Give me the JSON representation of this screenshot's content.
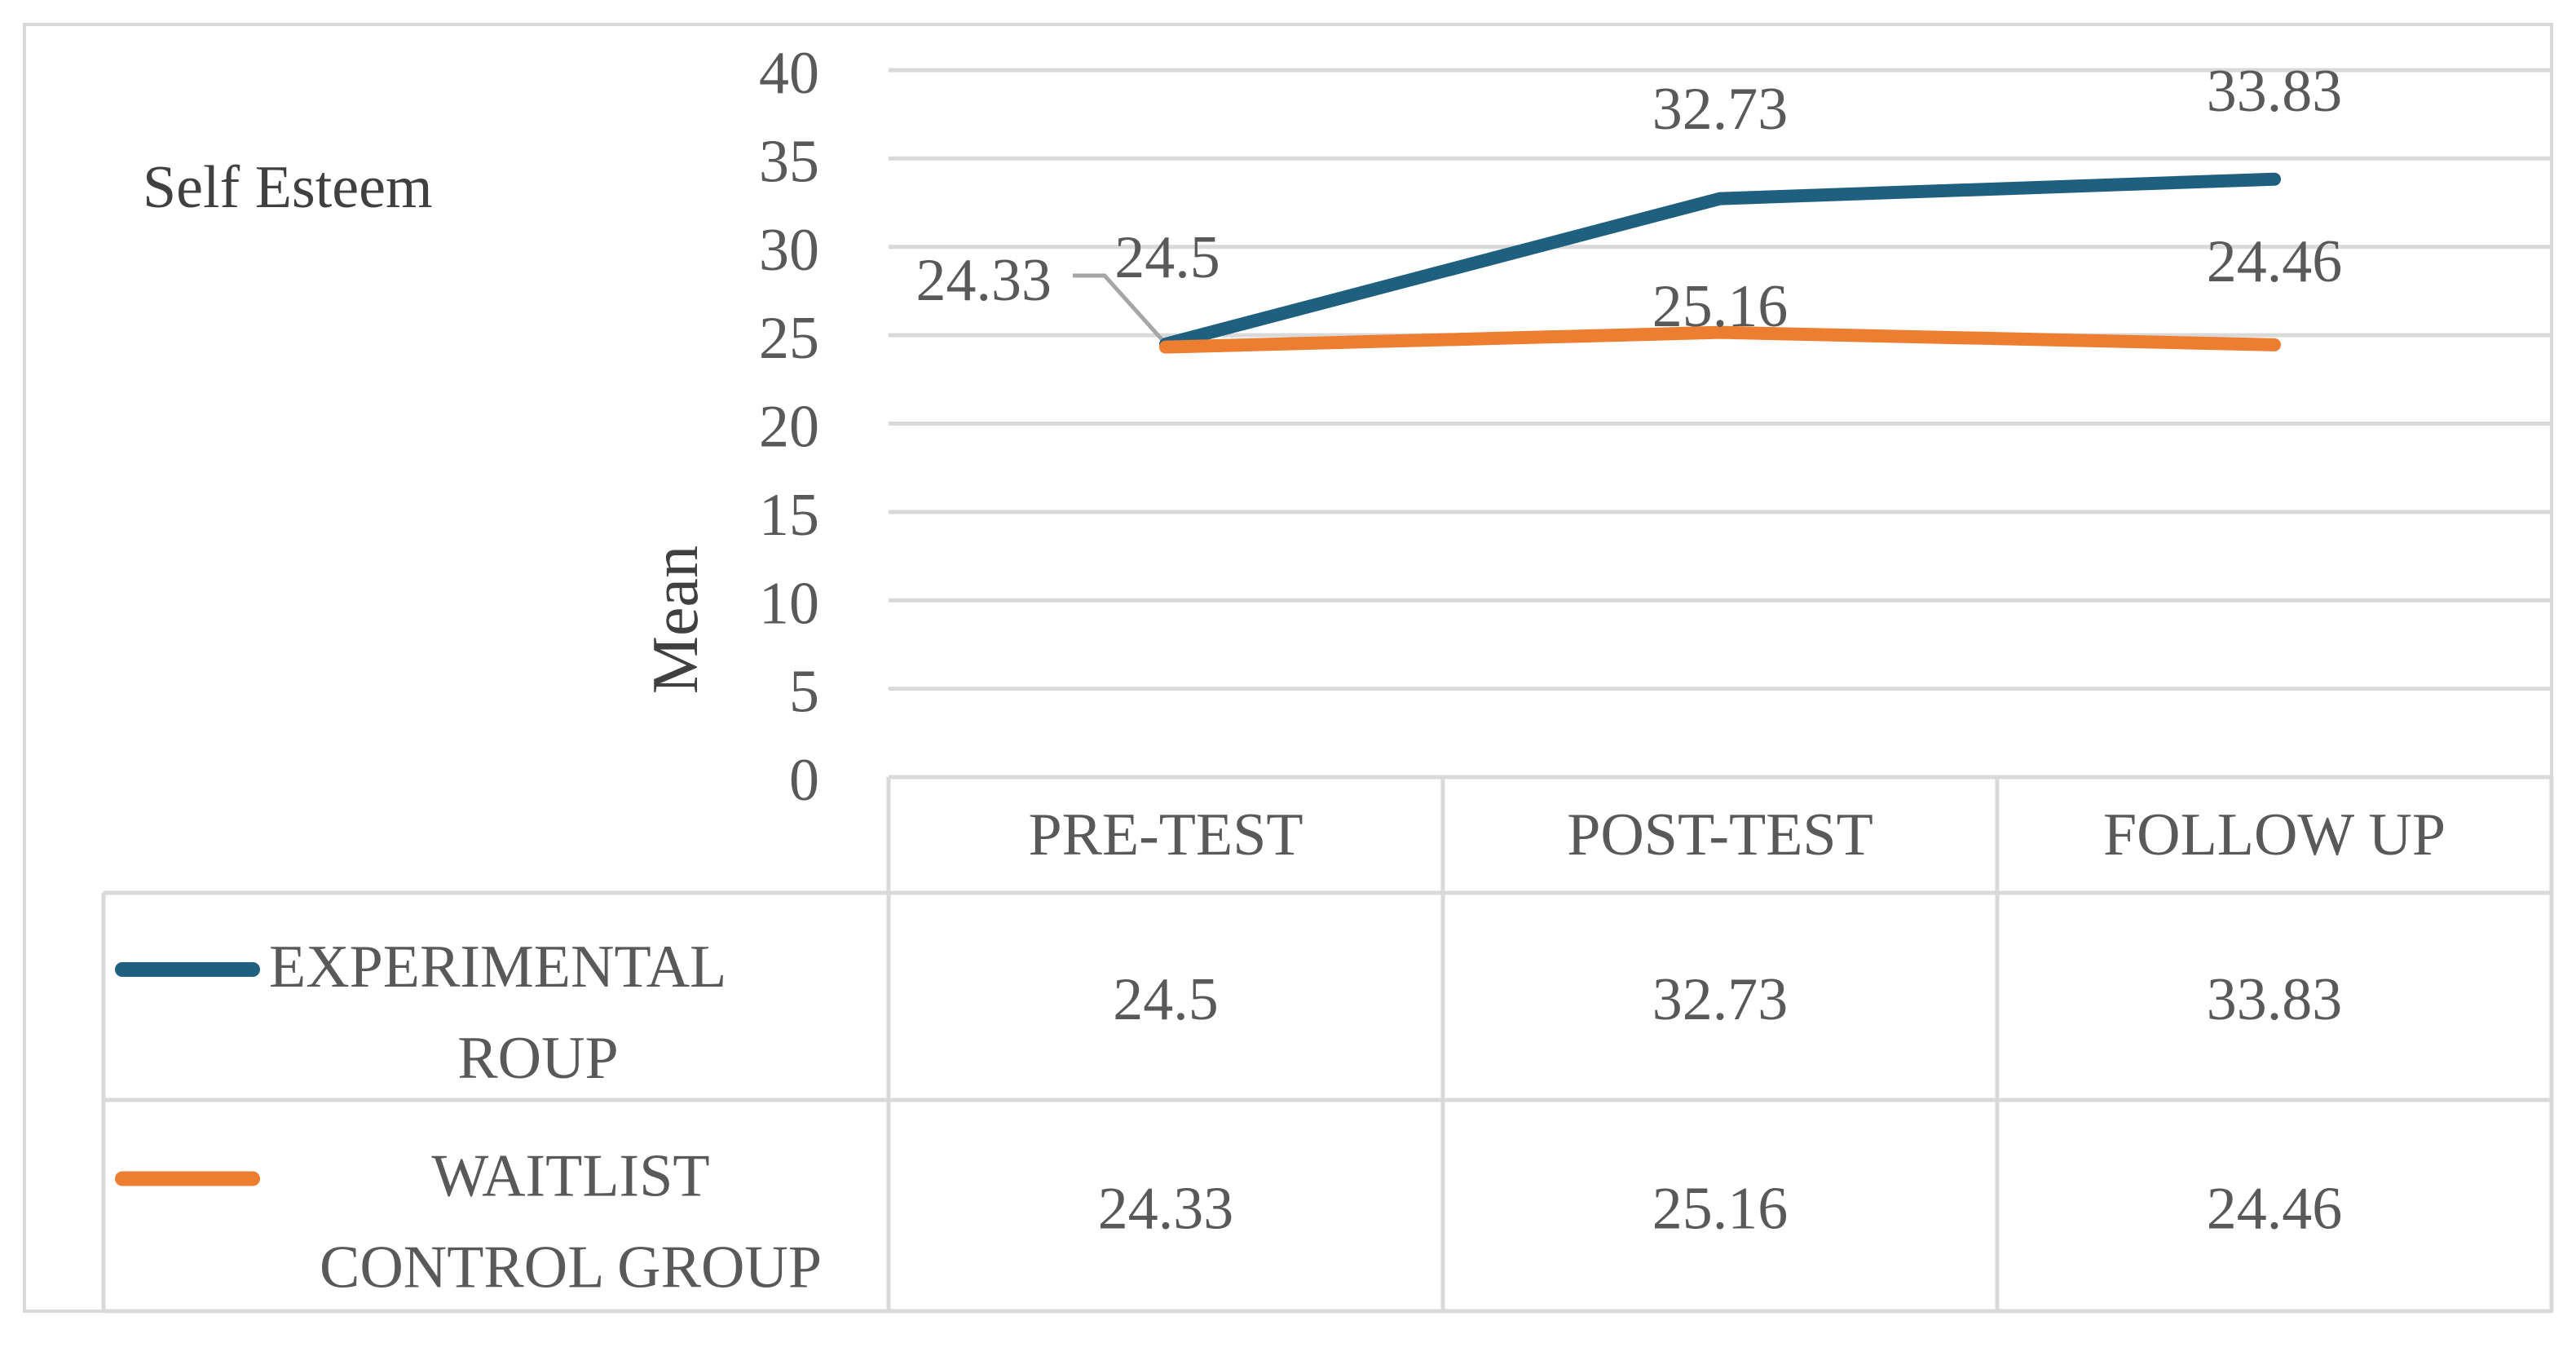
{
  "chart_data": {
    "type": "line",
    "title": "Self Esteem",
    "xlabel": "",
    "ylabel": "Mean",
    "ylim": [
      0,
      40
    ],
    "yticks": [
      "0",
      "5",
      "10",
      "15",
      "20",
      "25",
      "30",
      "35",
      "40"
    ],
    "grid": true,
    "legend": "data-table",
    "categories": [
      "PRE-TEST",
      "POST-TEST",
      "FOLLOW UP"
    ],
    "series": [
      {
        "name_lines": [
          "EXPERIMENTAL",
          "ROUP"
        ],
        "values": [
          24.5,
          32.73,
          33.83
        ],
        "labels": [
          "24.5",
          "32.73",
          "33.83"
        ],
        "color": "#1f5f7f"
      },
      {
        "name_lines": [
          "WAITLIST",
          "CONTROL GROUP"
        ],
        "values": [
          24.33,
          25.16,
          24.46
        ],
        "labels": [
          "24.33",
          "25.16",
          "24.46"
        ],
        "color": "#ed7d31"
      }
    ]
  }
}
